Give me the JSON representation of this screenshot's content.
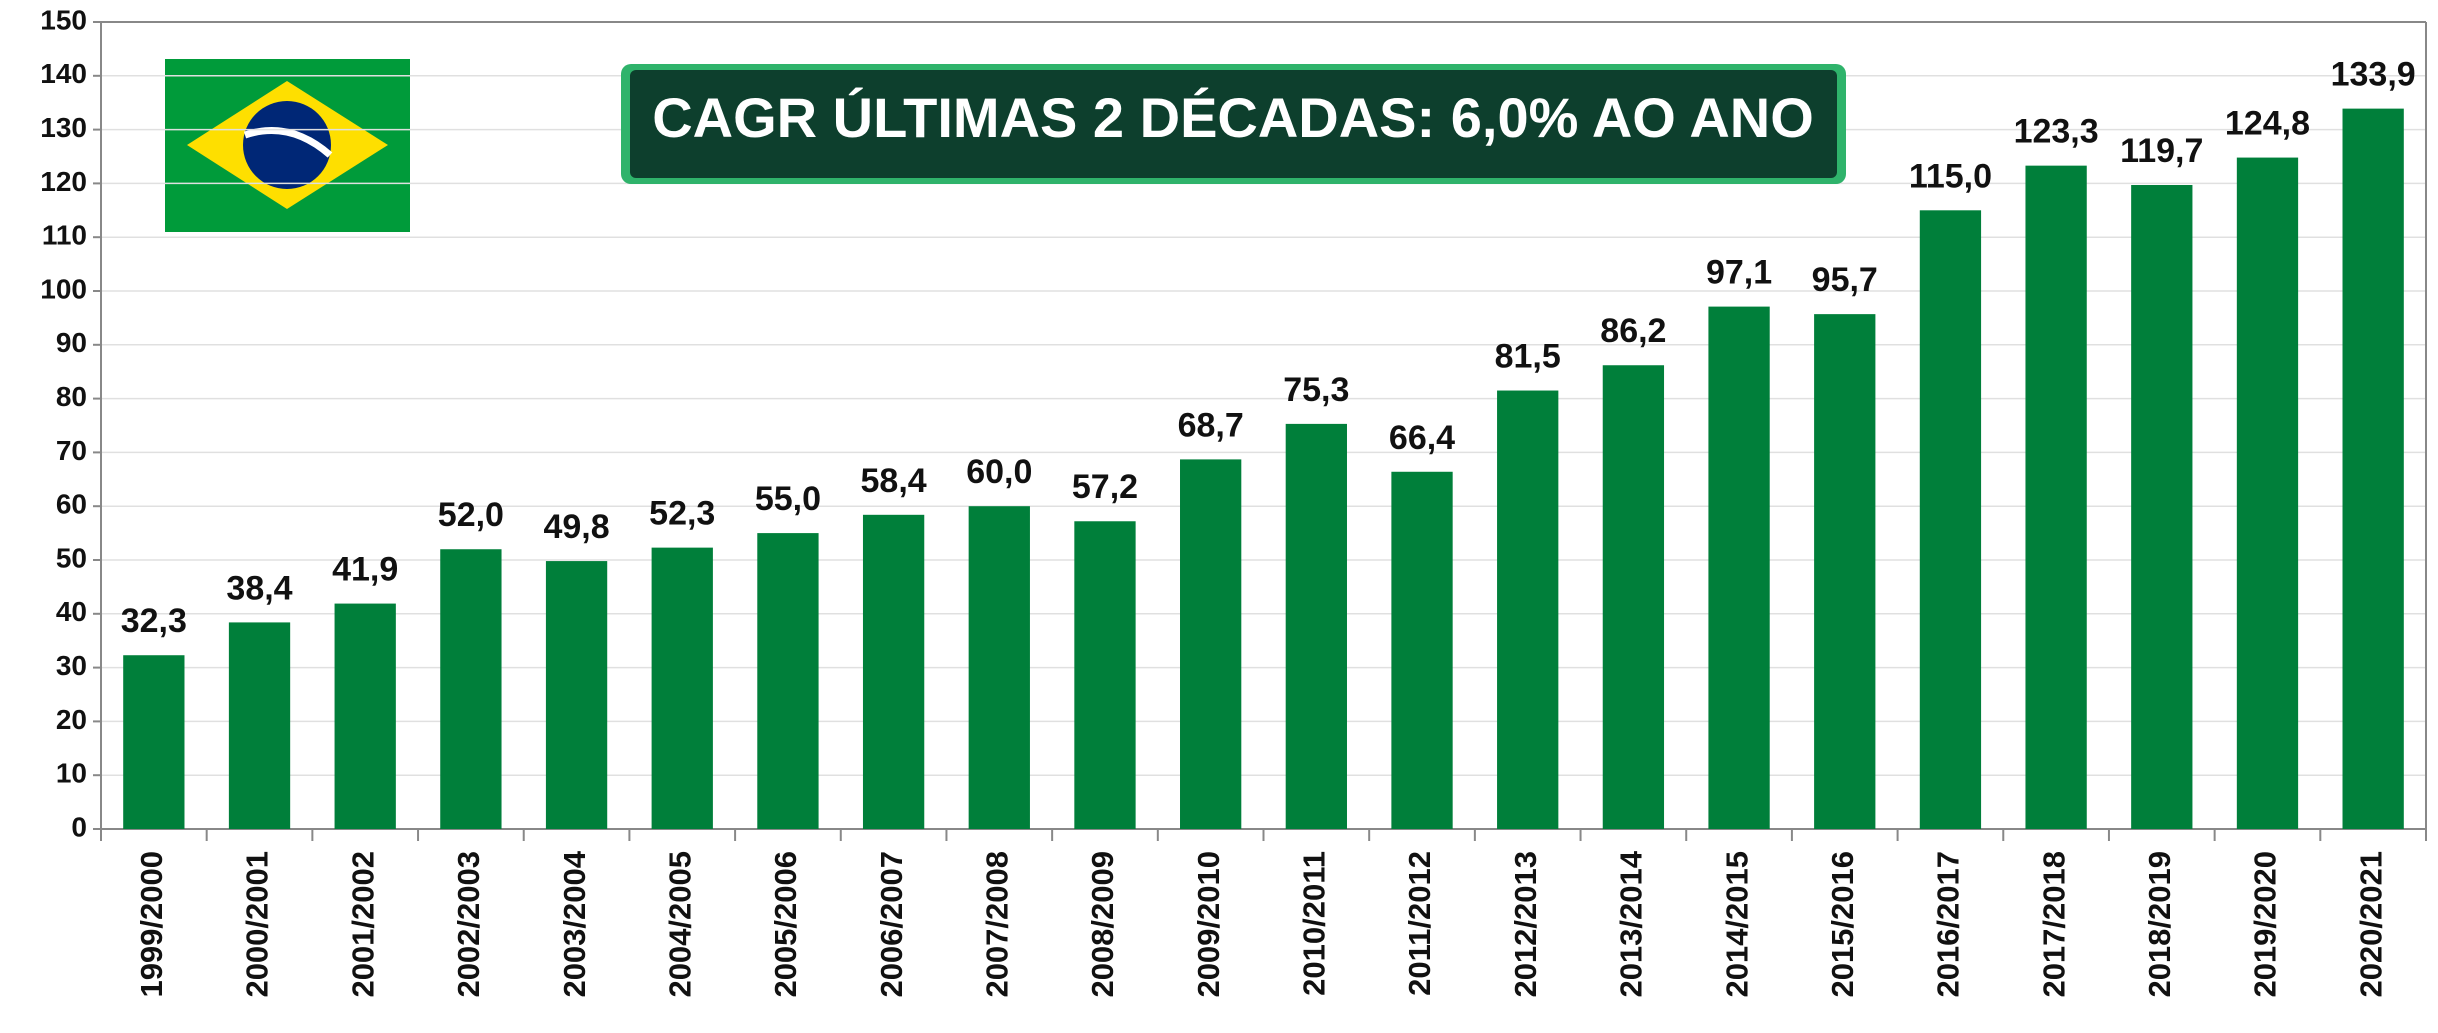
{
  "chart_data": {
    "type": "bar",
    "annotation": "CAGR ÚLTIMAS 2 DÉCADAS: 6,0% AO ANO",
    "categories": [
      "1999/2000",
      "2000/2001",
      "2001/2002",
      "2002/2003",
      "2003/2004",
      "2004/2005",
      "2005/2006",
      "2006/2007",
      "2007/2008",
      "2008/2009",
      "2009/2010",
      "2010/2011",
      "2011/2012",
      "2012/2013",
      "2013/2014",
      "2014/2015",
      "2015/2016",
      "2016/2017",
      "2017/2018",
      "2018/2019",
      "2019/2020",
      "2020/2021"
    ],
    "values": [
      32.3,
      38.4,
      41.9,
      52.0,
      49.8,
      52.3,
      55.0,
      58.4,
      60.0,
      57.2,
      68.7,
      75.3,
      66.4,
      81.5,
      86.2,
      97.1,
      95.7,
      115.0,
      123.3,
      119.7,
      124.8,
      133.9
    ],
    "value_labels": [
      "32,3",
      "38,4",
      "41,9",
      "52,0",
      "49,8",
      "52,3",
      "55,0",
      "58,4",
      "60,0",
      "57,2",
      "68,7",
      "75,3",
      "66,4",
      "81,5",
      "86,2",
      "97,1",
      "95,7",
      "115,0",
      "123,3",
      "119,7",
      "124,8",
      "133,9"
    ],
    "color": "#007f3a",
    "ylim": [
      0,
      150
    ],
    "yticks": [
      0,
      10,
      20,
      30,
      40,
      50,
      60,
      70,
      80,
      90,
      100,
      110,
      120,
      130,
      140,
      150
    ],
    "grid": true
  }
}
